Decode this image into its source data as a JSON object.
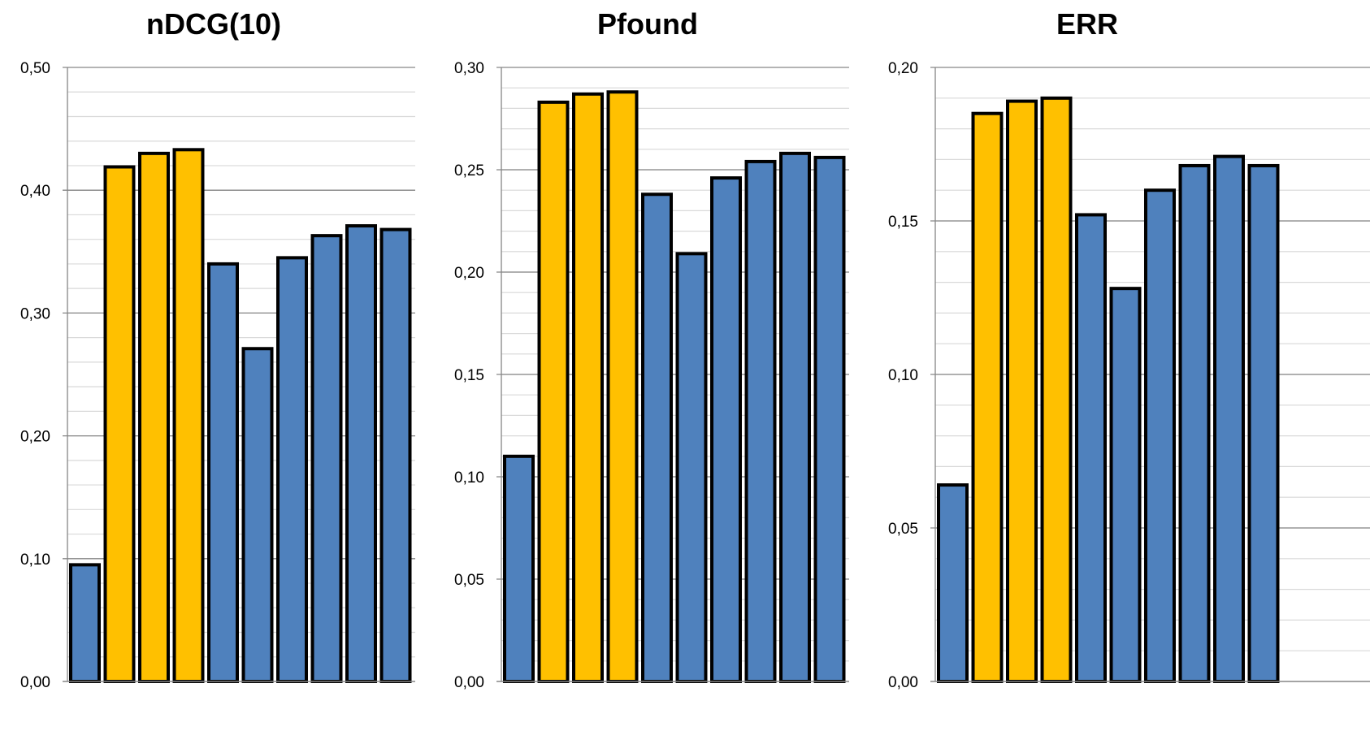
{
  "chart_data": [
    {
      "type": "bar",
      "title": "nDCG(10)",
      "xlabel": "",
      "ylabel": "",
      "ylim": [
        0,
        0.5
      ],
      "y_ticks": [
        "0,00",
        "0,10",
        "0,20",
        "0,30",
        "0,40",
        "0,50"
      ],
      "y_tick_values": [
        0,
        0.1,
        0.2,
        0.3,
        0.4,
        0.5
      ],
      "minor_step": 0.02,
      "values": [
        0.095,
        0.419,
        0.43,
        0.433,
        0.34,
        0.271,
        0.345,
        0.363,
        0.371,
        0.368
      ],
      "bar_colors": [
        "#4F81BD",
        "#FFC000",
        "#FFC000",
        "#FFC000",
        "#4F81BD",
        "#4F81BD",
        "#4F81BD",
        "#4F81BD",
        "#4F81BD",
        "#4F81BD"
      ],
      "grid": true
    },
    {
      "type": "bar",
      "title": "Pfound",
      "xlabel": "",
      "ylabel": "",
      "ylim": [
        0,
        0.3
      ],
      "y_ticks": [
        "0,00",
        "0,05",
        "0,10",
        "0,15",
        "0,20",
        "0,25",
        "0,30"
      ],
      "y_tick_values": [
        0,
        0.05,
        0.1,
        0.15,
        0.2,
        0.25,
        0.3
      ],
      "minor_step": 0.01,
      "values": [
        0.11,
        0.283,
        0.287,
        0.288,
        0.238,
        0.209,
        0.246,
        0.254,
        0.258,
        0.256
      ],
      "bar_colors": [
        "#4F81BD",
        "#FFC000",
        "#FFC000",
        "#FFC000",
        "#4F81BD",
        "#4F81BD",
        "#4F81BD",
        "#4F81BD",
        "#4F81BD",
        "#4F81BD"
      ],
      "grid": true
    },
    {
      "type": "bar",
      "title": "ERR",
      "xlabel": "",
      "ylabel": "",
      "ylim": [
        0,
        0.2
      ],
      "y_ticks": [
        "0,00",
        "0,05",
        "0,10",
        "0,15",
        "0,20"
      ],
      "y_tick_values": [
        0,
        0.05,
        0.1,
        0.15,
        0.2
      ],
      "minor_step": 0.01,
      "values": [
        0.064,
        0.185,
        0.189,
        0.19,
        0.152,
        0.128,
        0.16,
        0.168,
        0.171,
        0.168
      ],
      "bar_colors": [
        "#4F81BD",
        "#FFC000",
        "#FFC000",
        "#FFC000",
        "#4F81BD",
        "#4F81BD",
        "#4F81BD",
        "#4F81BD",
        "#4F81BD",
        "#4F81BD"
      ],
      "grid": true
    }
  ],
  "colors": {
    "baseline_bar": "#4F81BD",
    "highlight_bar": "#FFC000",
    "bar_outline": "#000000",
    "major_grid": "#868686",
    "minor_grid": "#D9D9D9"
  }
}
